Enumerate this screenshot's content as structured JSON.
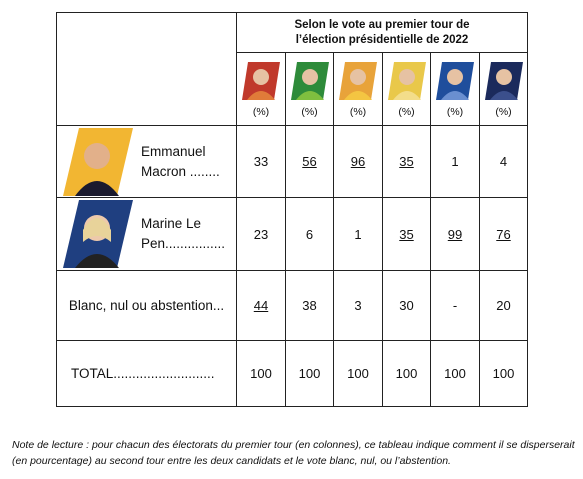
{
  "table": {
    "header": "Selon le vote au premier tour de l’élection présidentielle de 2022",
    "unit_labels": [
      "(%)",
      "(%)",
      "(%)",
      "(%)",
      "(%)",
      "(%)"
    ],
    "rows": [
      {
        "label": "Emmanuel Macron ........",
        "values": [
          33,
          56,
          96,
          35,
          1,
          4
        ],
        "underlined": [
          false,
          true,
          true,
          true,
          false,
          false
        ]
      },
      {
        "label": "Marine Le Pen................",
        "values": [
          23,
          6,
          1,
          35,
          99,
          76
        ],
        "underlined": [
          false,
          false,
          false,
          true,
          true,
          true
        ]
      },
      {
        "label": "Blanc, nul ou abstention...",
        "values": [
          44,
          38,
          3,
          30,
          "-",
          20
        ],
        "underlined": [
          true,
          false,
          false,
          false,
          false,
          false
        ]
      },
      {
        "label": "TOTAL...........................",
        "values": [
          100,
          100,
          100,
          100,
          100,
          100
        ],
        "underlined": [
          false,
          false,
          false,
          false,
          false,
          false
        ]
      }
    ]
  },
  "note": "Note de lecture : pour chacun des électorats du premier tour (en colonnes), ce tableau indique comment il se disperserait (en pourcentage) au second tour entre les deux candidats et le vote blanc, nul, ou l’abstention."
}
